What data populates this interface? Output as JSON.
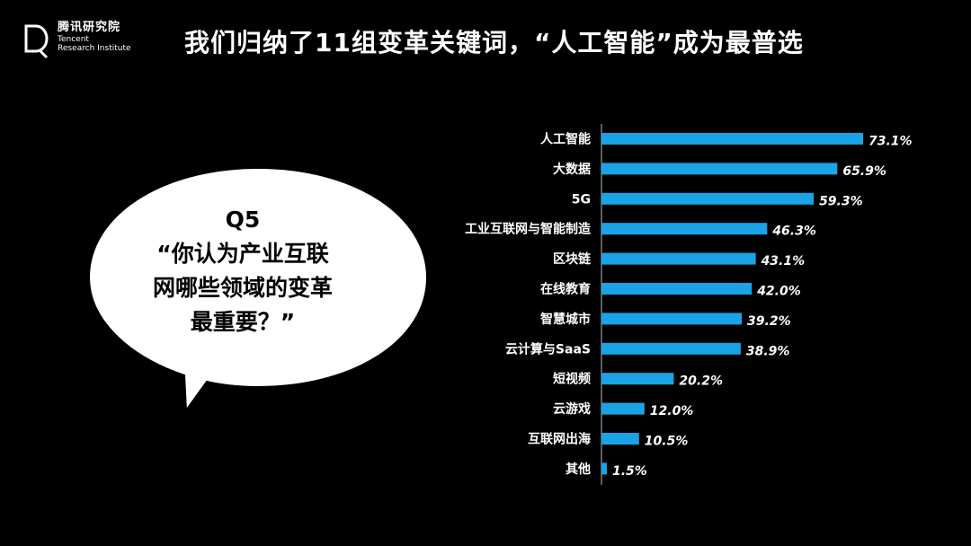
{
  "header": {
    "logo_cn": "腾讯研究院",
    "logo_en_line1": "Tencent",
    "logo_en_line2": "Research Institute",
    "title": "我们归纳了11组变革关键词，“人工智能”成为最普选"
  },
  "bubble": {
    "line1": "Q5",
    "line2": "“你认为产业互联",
    "line3": "网哪些领域的变革",
    "line4": "最重要？”"
  },
  "colors": {
    "bar": "#1ba3e8",
    "background": "#000000",
    "text": "#ffffff"
  },
  "chart_data": {
    "type": "bar",
    "orientation": "horizontal",
    "categories": [
      "人工智能",
      "大数据",
      "5G",
      "工业互联网与智能制造",
      "区块链",
      "在线教育",
      "智慧城市",
      "云计算与SaaS",
      "短视频",
      "云游戏",
      "互联网出海",
      "其他"
    ],
    "values": [
      73.1,
      65.9,
      59.3,
      46.3,
      43.1,
      42.0,
      39.2,
      38.9,
      20.2,
      12.0,
      10.5,
      1.5
    ],
    "value_labels": [
      "73.1%",
      "65.9%",
      "59.3%",
      "46.3%",
      "43.1%",
      "42.0%",
      "39.2%",
      "38.9%",
      "20.2%",
      "12.0%",
      "10.5%",
      "1.5%"
    ],
    "unit": "%",
    "xlim": [
      0,
      100
    ],
    "grid": false,
    "legend": "none"
  }
}
